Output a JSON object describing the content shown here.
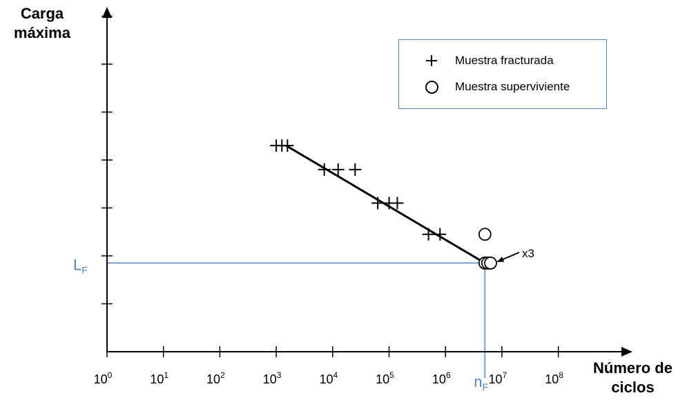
{
  "chart_data": {
    "type": "scatter",
    "xscale": "log",
    "ylabel": [
      "Carga",
      "máxima"
    ],
    "xlabel": [
      "Número de",
      "ciclos"
    ],
    "x_ticks": [
      {
        "value": 1,
        "base": "10",
        "exp": "0"
      },
      {
        "value": 10,
        "base": "10",
        "exp": "1"
      },
      {
        "value": 100,
        "base": "10",
        "exp": "2"
      },
      {
        "value": 1000,
        "base": "10",
        "exp": "3"
      },
      {
        "value": 10000,
        "base": "10",
        "exp": "4"
      },
      {
        "value": 100000,
        "base": "10",
        "exp": "5"
      },
      {
        "value": 1000000,
        "base": "10",
        "exp": "6"
      },
      {
        "value": 10000000,
        "base": "10",
        "exp": "7"
      },
      {
        "value": 100000000,
        "base": "10",
        "exp": "8"
      }
    ],
    "y_ticks": [
      1,
      2,
      3,
      4,
      5,
      6,
      7
    ],
    "ylim": [
      0,
      7.8
    ],
    "xlim": [
      1,
      400000000
    ],
    "series": [
      {
        "name": "Muestra fracturada",
        "marker": "plus",
        "points": [
          {
            "x": 1000,
            "y": 4.3
          },
          {
            "x": 1260,
            "y": 4.3
          },
          {
            "x": 1580,
            "y": 4.3
          },
          {
            "x": 7100,
            "y": 3.8
          },
          {
            "x": 12500,
            "y": 3.8
          },
          {
            "x": 25000,
            "y": 3.8
          },
          {
            "x": 63000,
            "y": 3.1
          },
          {
            "x": 100000,
            "y": 3.1
          },
          {
            "x": 140000,
            "y": 3.1
          },
          {
            "x": 500000,
            "y": 2.45
          },
          {
            "x": 800000,
            "y": 2.45
          }
        ]
      },
      {
        "name": "Muestra superviviente",
        "marker": "circle",
        "points": [
          {
            "x": 5000000,
            "y": 2.45
          },
          {
            "x": 5000000,
            "y": 1.85
          },
          {
            "x": 5600000,
            "y": 1.85
          },
          {
            "x": 6300000,
            "y": 1.85
          }
        ]
      }
    ],
    "fit_line": {
      "x1": 1500,
      "y1": 4.3,
      "x2": 5000000,
      "y2": 1.85
    },
    "reference": {
      "x": 5000000,
      "y": 1.85,
      "x_label": {
        "base": "n",
        "sub": "F"
      },
      "y_label": {
        "base": "L",
        "sub": "F"
      },
      "color": "#4a86c8"
    },
    "annotation": {
      "text": "x3",
      "target_x": 6300000,
      "target_y": 1.85
    },
    "legend": {
      "position": "top-right",
      "border_color": "#4a86c8",
      "items": [
        {
          "label": "Muestra fracturada",
          "marker": "plus"
        },
        {
          "label": "Muestra superviviente",
          "marker": "circle"
        }
      ]
    }
  }
}
